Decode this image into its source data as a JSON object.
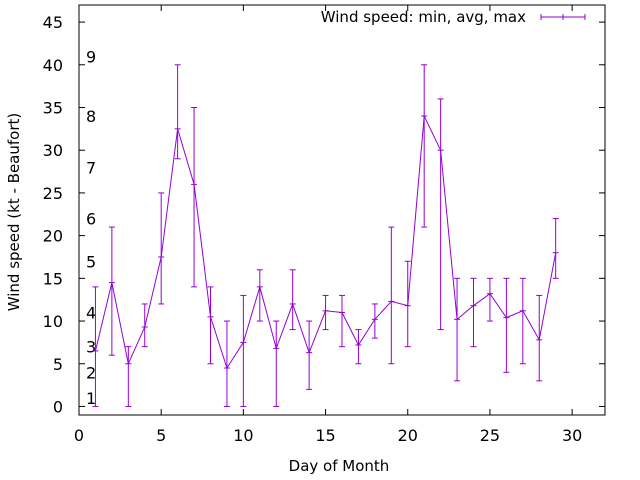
{
  "chart_data": {
    "type": "line",
    "title": "",
    "xlabel": "Day of Month",
    "ylabel": "Wind speed (kt - Beaufort)",
    "xlim": [
      0,
      32
    ],
    "ylim": [
      -1,
      47
    ],
    "xticks": [
      0,
      5,
      10,
      15,
      20,
      25,
      30
    ],
    "yticks": [
      0,
      5,
      10,
      15,
      20,
      25,
      30,
      35,
      40,
      45
    ],
    "grid": false,
    "legend_position": "top-right",
    "series": [
      {
        "name": "Wind speed: min, avg, max",
        "color": "#9400d3",
        "x": [
          1,
          2,
          3,
          4,
          5,
          6,
          7,
          8,
          9,
          10,
          11,
          12,
          13,
          14,
          15,
          16,
          17,
          18,
          19,
          20,
          21,
          22,
          23,
          24,
          25,
          26,
          27,
          28,
          29
        ],
        "avg": [
          6.5,
          14.5,
          5,
          9.3,
          17.5,
          32.5,
          26,
          10.5,
          4.5,
          7.5,
          14,
          6.8,
          12,
          6.3,
          11.2,
          11,
          7.2,
          10.2,
          12.3,
          11.8,
          34,
          30,
          10.2,
          11.8,
          13.2,
          10.4,
          11.2,
          7.8,
          18
        ],
        "min": [
          0,
          6,
          0,
          7,
          12,
          29,
          14,
          5,
          0,
          0,
          10,
          0,
          9,
          2,
          9,
          7,
          5,
          8,
          5,
          7,
          21,
          9,
          3,
          7,
          10,
          4,
          5,
          3,
          15
        ],
        "max": [
          14,
          21,
          7,
          12,
          25,
          40,
          35,
          14,
          10,
          13,
          16,
          10,
          16,
          10,
          13,
          13,
          9,
          12,
          21,
          17,
          40,
          36,
          15,
          15,
          15,
          15,
          15,
          13,
          22
        ]
      }
    ],
    "annotations": {
      "beaufort_scale": [
        {
          "label": "1",
          "at_kt": 1
        },
        {
          "label": "2",
          "at_kt": 4
        },
        {
          "label": "3",
          "at_kt": 7
        },
        {
          "label": "4",
          "at_kt": 11
        },
        {
          "label": "5",
          "at_kt": 17
        },
        {
          "label": "6",
          "at_kt": 22
        },
        {
          "label": "7",
          "at_kt": 28
        },
        {
          "label": "8",
          "at_kt": 34
        },
        {
          "label": "9",
          "at_kt": 41
        }
      ]
    }
  }
}
